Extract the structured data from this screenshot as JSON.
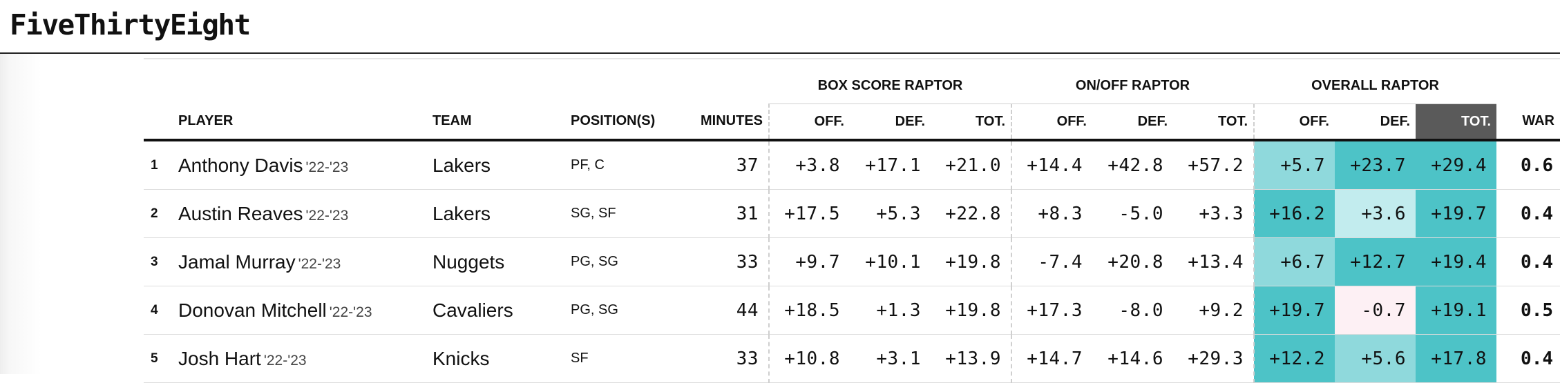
{
  "header": {
    "brand": "FiveThirtyEight"
  },
  "table": {
    "groups": {
      "box": "BOX SCORE RAPTOR",
      "onoff": "ON/OFF RAPTOR",
      "overall": "OVERALL RAPTOR"
    },
    "columns": {
      "player": "PLAYER",
      "team": "TEAM",
      "position": "POSITION(S)",
      "minutes": "MINUTES",
      "off": "OFF.",
      "def": "DEF.",
      "tot": "TOT.",
      "war": "WAR"
    },
    "colors": {
      "strong": "#4dc3c7",
      "medium": "#8fd9dc",
      "light": "#c2ecee",
      "negative": "#fdf0f4",
      "selected_header": "#5a5a5a"
    },
    "rows": [
      {
        "rank": "1",
        "name": "Anthony Davis",
        "season": "'22-'23",
        "team": "Lakers",
        "position": "PF, C",
        "minutes": "37",
        "box_off": "+3.8",
        "box_def": "+17.1",
        "box_tot": "+21.0",
        "onoff_off": "+14.4",
        "onoff_def": "+42.8",
        "onoff_tot": "+57.2",
        "ovr_off": "+5.7",
        "ovr_def": "+23.7",
        "ovr_tot": "+29.4",
        "war": "0.6"
      },
      {
        "rank": "2",
        "name": "Austin Reaves",
        "season": "'22-'23",
        "team": "Lakers",
        "position": "SG, SF",
        "minutes": "31",
        "box_off": "+17.5",
        "box_def": "+5.3",
        "box_tot": "+22.8",
        "onoff_off": "+8.3",
        "onoff_def": "-5.0",
        "onoff_tot": "+3.3",
        "ovr_off": "+16.2",
        "ovr_def": "+3.6",
        "ovr_tot": "+19.7",
        "war": "0.4"
      },
      {
        "rank": "3",
        "name": "Jamal Murray",
        "season": "'22-'23",
        "team": "Nuggets",
        "position": "PG, SG",
        "minutes": "33",
        "box_off": "+9.7",
        "box_def": "+10.1",
        "box_tot": "+19.8",
        "onoff_off": "-7.4",
        "onoff_def": "+20.8",
        "onoff_tot": "+13.4",
        "ovr_off": "+6.7",
        "ovr_def": "+12.7",
        "ovr_tot": "+19.4",
        "war": "0.4"
      },
      {
        "rank": "4",
        "name": "Donovan Mitchell",
        "season": "'22-'23",
        "team": "Cavaliers",
        "position": "PG, SG",
        "minutes": "44",
        "box_off": "+18.5",
        "box_def": "+1.3",
        "box_tot": "+19.8",
        "onoff_off": "+17.3",
        "onoff_def": "-8.0",
        "onoff_tot": "+9.2",
        "ovr_off": "+19.7",
        "ovr_def": "-0.7",
        "ovr_tot": "+19.1",
        "war": "0.5"
      },
      {
        "rank": "5",
        "name": "Josh Hart",
        "season": "'22-'23",
        "team": "Knicks",
        "position": "SF",
        "minutes": "33",
        "box_off": "+10.8",
        "box_def": "+3.1",
        "box_tot": "+13.9",
        "onoff_off": "+14.7",
        "onoff_def": "+14.6",
        "onoff_tot": "+29.3",
        "ovr_off": "+12.2",
        "ovr_def": "+5.6",
        "ovr_tot": "+17.8",
        "war": "0.4"
      }
    ],
    "shading": [
      [
        "medium",
        "strong",
        "strong"
      ],
      [
        "strong",
        "light",
        "strong"
      ],
      [
        "medium",
        "strong",
        "strong"
      ],
      [
        "strong",
        "negative",
        "strong"
      ],
      [
        "strong",
        "medium",
        "strong"
      ]
    ]
  }
}
